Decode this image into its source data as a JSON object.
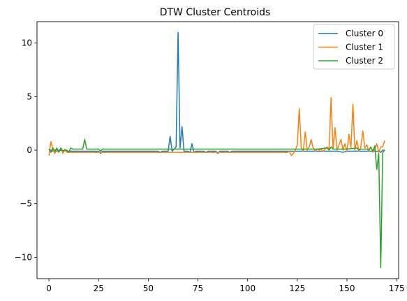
{
  "chart_data": {
    "type": "line",
    "title": "DTW Cluster Centroids",
    "xlabel": "",
    "ylabel": "",
    "xlim": [
      -6,
      176
    ],
    "ylim": [
      -12,
      12
    ],
    "xticks": [
      0,
      25,
      50,
      75,
      100,
      125,
      150,
      175
    ],
    "yticks": [
      10,
      5,
      0,
      -5,
      -10
    ],
    "legend_position": "top-right",
    "series": [
      {
        "name": "Cluster 0",
        "color": "#1f77b4",
        "points": [
          [
            0,
            0.1
          ],
          [
            1,
            0.0
          ],
          [
            2,
            -0.1
          ],
          [
            3,
            0.0
          ],
          [
            4,
            -0.1
          ],
          [
            5,
            0.0
          ],
          [
            10,
            -0.1
          ],
          [
            20,
            -0.1
          ],
          [
            25,
            -0.1
          ],
          [
            26,
            -0.3
          ],
          [
            27,
            -0.1
          ],
          [
            40,
            -0.1
          ],
          [
            55,
            -0.1
          ],
          [
            56,
            -0.2
          ],
          [
            57,
            -0.1
          ],
          [
            60,
            -0.1
          ],
          [
            61,
            1.3
          ],
          [
            62,
            -0.1
          ],
          [
            63,
            0.1
          ],
          [
            64,
            0.3
          ],
          [
            65,
            11.0
          ],
          [
            66,
            0.2
          ],
          [
            67,
            2.2
          ],
          [
            68,
            -0.1
          ],
          [
            70,
            -0.1
          ],
          [
            71,
            -0.2
          ],
          [
            72,
            0.6
          ],
          [
            73,
            -0.2
          ],
          [
            74,
            -0.1
          ],
          [
            78,
            -0.1
          ],
          [
            79,
            -0.2
          ],
          [
            80,
            -0.1
          ],
          [
            84,
            -0.1
          ],
          [
            85,
            -0.3
          ],
          [
            86,
            -0.1
          ],
          [
            90,
            -0.1
          ],
          [
            91,
            -0.2
          ],
          [
            92,
            -0.1
          ],
          [
            100,
            -0.1
          ],
          [
            110,
            -0.1
          ],
          [
            120,
            -0.1
          ],
          [
            125,
            -0.1
          ],
          [
            130,
            -0.1
          ],
          [
            140,
            -0.1
          ],
          [
            145,
            -0.1
          ],
          [
            148,
            -0.2
          ],
          [
            150,
            -0.1
          ],
          [
            155,
            -0.1
          ],
          [
            160,
            -0.1
          ],
          [
            165,
            -0.1
          ],
          [
            166,
            -0.1
          ],
          [
            167,
            -0.2
          ],
          [
            168,
            0.0
          ],
          [
            169,
            0.0
          ]
        ]
      },
      {
        "name": "Cluster 1",
        "color": "#ff7f0e",
        "points": [
          [
            0,
            -0.5
          ],
          [
            1,
            0.8
          ],
          [
            2,
            0.0
          ],
          [
            3,
            -0.3
          ],
          [
            4,
            0.1
          ],
          [
            5,
            -0.2
          ],
          [
            6,
            0.2
          ],
          [
            7,
            -0.3
          ],
          [
            8,
            0.1
          ],
          [
            9,
            -0.2
          ],
          [
            10,
            -0.2
          ],
          [
            20,
            -0.2
          ],
          [
            30,
            -0.2
          ],
          [
            40,
            -0.2
          ],
          [
            50,
            -0.2
          ],
          [
            60,
            -0.2
          ],
          [
            70,
            -0.2
          ],
          [
            80,
            -0.2
          ],
          [
            90,
            -0.2
          ],
          [
            100,
            -0.2
          ],
          [
            110,
            -0.2
          ],
          [
            120,
            -0.2
          ],
          [
            121,
            -0.1
          ],
          [
            122,
            -0.5
          ],
          [
            123,
            -0.3
          ],
          [
            124,
            0.0
          ],
          [
            125,
            0.5
          ],
          [
            126,
            3.9
          ],
          [
            127,
            0.2
          ],
          [
            128,
            -0.1
          ],
          [
            129,
            1.7
          ],
          [
            130,
            0.0
          ],
          [
            131,
            0.3
          ],
          [
            132,
            1.0
          ],
          [
            133,
            0.2
          ],
          [
            134,
            -0.1
          ],
          [
            135,
            0.1
          ],
          [
            136,
            0.0
          ],
          [
            137,
            0.1
          ],
          [
            138,
            -0.1
          ],
          [
            139,
            0.1
          ],
          [
            140,
            0.3
          ],
          [
            141,
            0.1
          ],
          [
            142,
            4.9
          ],
          [
            143,
            0.1
          ],
          [
            144,
            2.1
          ],
          [
            145,
            0.0
          ],
          [
            146,
            0.5
          ],
          [
            147,
            1.0
          ],
          [
            148,
            0.0
          ],
          [
            149,
            0.6
          ],
          [
            150,
            -0.1
          ],
          [
            151,
            1.5
          ],
          [
            152,
            0.2
          ],
          [
            153,
            4.3
          ],
          [
            154,
            0.0
          ],
          [
            155,
            0.9
          ],
          [
            156,
            -0.1
          ],
          [
            157,
            0.3
          ],
          [
            158,
            1.8
          ],
          [
            159,
            0.2
          ],
          [
            160,
            0.5
          ],
          [
            161,
            -0.1
          ],
          [
            162,
            0.3
          ],
          [
            163,
            -0.2
          ],
          [
            164,
            0.1
          ],
          [
            165,
            0.6
          ],
          [
            166,
            -0.2
          ],
          [
            167,
            0.3
          ],
          [
            168,
            0.3
          ],
          [
            169,
            0.9
          ]
        ]
      },
      {
        "name": "Cluster 2",
        "color": "#2ca02c",
        "points": [
          [
            0,
            0.1
          ],
          [
            1,
            -0.2
          ],
          [
            2,
            0.2
          ],
          [
            3,
            -0.1
          ],
          [
            4,
            0.2
          ],
          [
            5,
            -0.2
          ],
          [
            6,
            0.2
          ],
          [
            7,
            -0.1
          ],
          [
            8,
            0.0
          ],
          [
            9,
            0.0
          ],
          [
            10,
            -0.2
          ],
          [
            11,
            0.2
          ],
          [
            12,
            0.1
          ],
          [
            17,
            0.1
          ],
          [
            18,
            1.0
          ],
          [
            19,
            0.1
          ],
          [
            20,
            0.1
          ],
          [
            25,
            0.1
          ],
          [
            26,
            -0.1
          ],
          [
            27,
            0.1
          ],
          [
            40,
            0.1
          ],
          [
            60,
            0.1
          ],
          [
            80,
            0.1
          ],
          [
            100,
            0.1
          ],
          [
            120,
            0.1
          ],
          [
            135,
            0.1
          ],
          [
            140,
            0.2
          ],
          [
            141,
            0.0
          ],
          [
            142,
            0.3
          ],
          [
            143,
            0.1
          ],
          [
            150,
            0.1
          ],
          [
            155,
            0.2
          ],
          [
            156,
            0.0
          ],
          [
            157,
            0.1
          ],
          [
            160,
            0.1
          ],
          [
            161,
            0.0
          ],
          [
            162,
            0.3
          ],
          [
            163,
            -0.1
          ],
          [
            164,
            0.4
          ],
          [
            165,
            -1.8
          ],
          [
            166,
            -0.3
          ],
          [
            167,
            -11.0
          ],
          [
            168,
            -0.2
          ],
          [
            169,
            0.0
          ]
        ]
      }
    ]
  }
}
